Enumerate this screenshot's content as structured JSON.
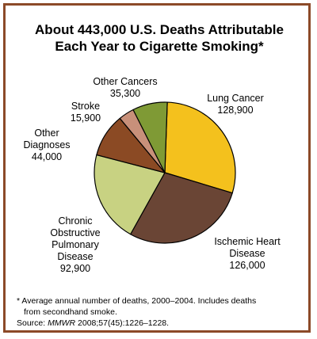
{
  "title_line1": "About 443,000 U.S. Deaths Attributable",
  "title_line2": "Each Year to Cigarette Smoking*",
  "chart_data": {
    "type": "pie",
    "title": "About 443,000 U.S. Deaths Attributable Each Year to Cigarette Smoking*",
    "slices": [
      {
        "label": [
          "Lung Cancer"
        ],
        "value_text": "128,900",
        "value": 128900,
        "color": "#f4c11d"
      },
      {
        "label": [
          "Ischemic Heart",
          "Disease"
        ],
        "value_text": "126,000",
        "value": 126000,
        "color": "#6a4535"
      },
      {
        "label": [
          "Chronic",
          "Obstructive",
          "Pulmonary",
          "Disease"
        ],
        "value_text": "92,900",
        "value": 92900,
        "color": "#c8d282"
      },
      {
        "label": [
          "Other",
          "Diagnoses"
        ],
        "value_text": "44,000",
        "value": 44000,
        "color": "#8b4a24"
      },
      {
        "label": [
          "Stroke"
        ],
        "value_text": "15,900",
        "value": 15900,
        "color": "#c8907a"
      },
      {
        "label": [
          "Other Cancers"
        ],
        "value_text": "35,300",
        "value": 35300,
        "color": "#7f9a35"
      }
    ]
  },
  "footnote_line1": "* Average annual number of deaths, 2000–2004. Includes deaths",
  "footnote_line2": "from secondhand smoke.",
  "source_prefix": "Source: ",
  "source_journal": "MMWR",
  "source_rest": " 2008;57(45):1226–1228."
}
